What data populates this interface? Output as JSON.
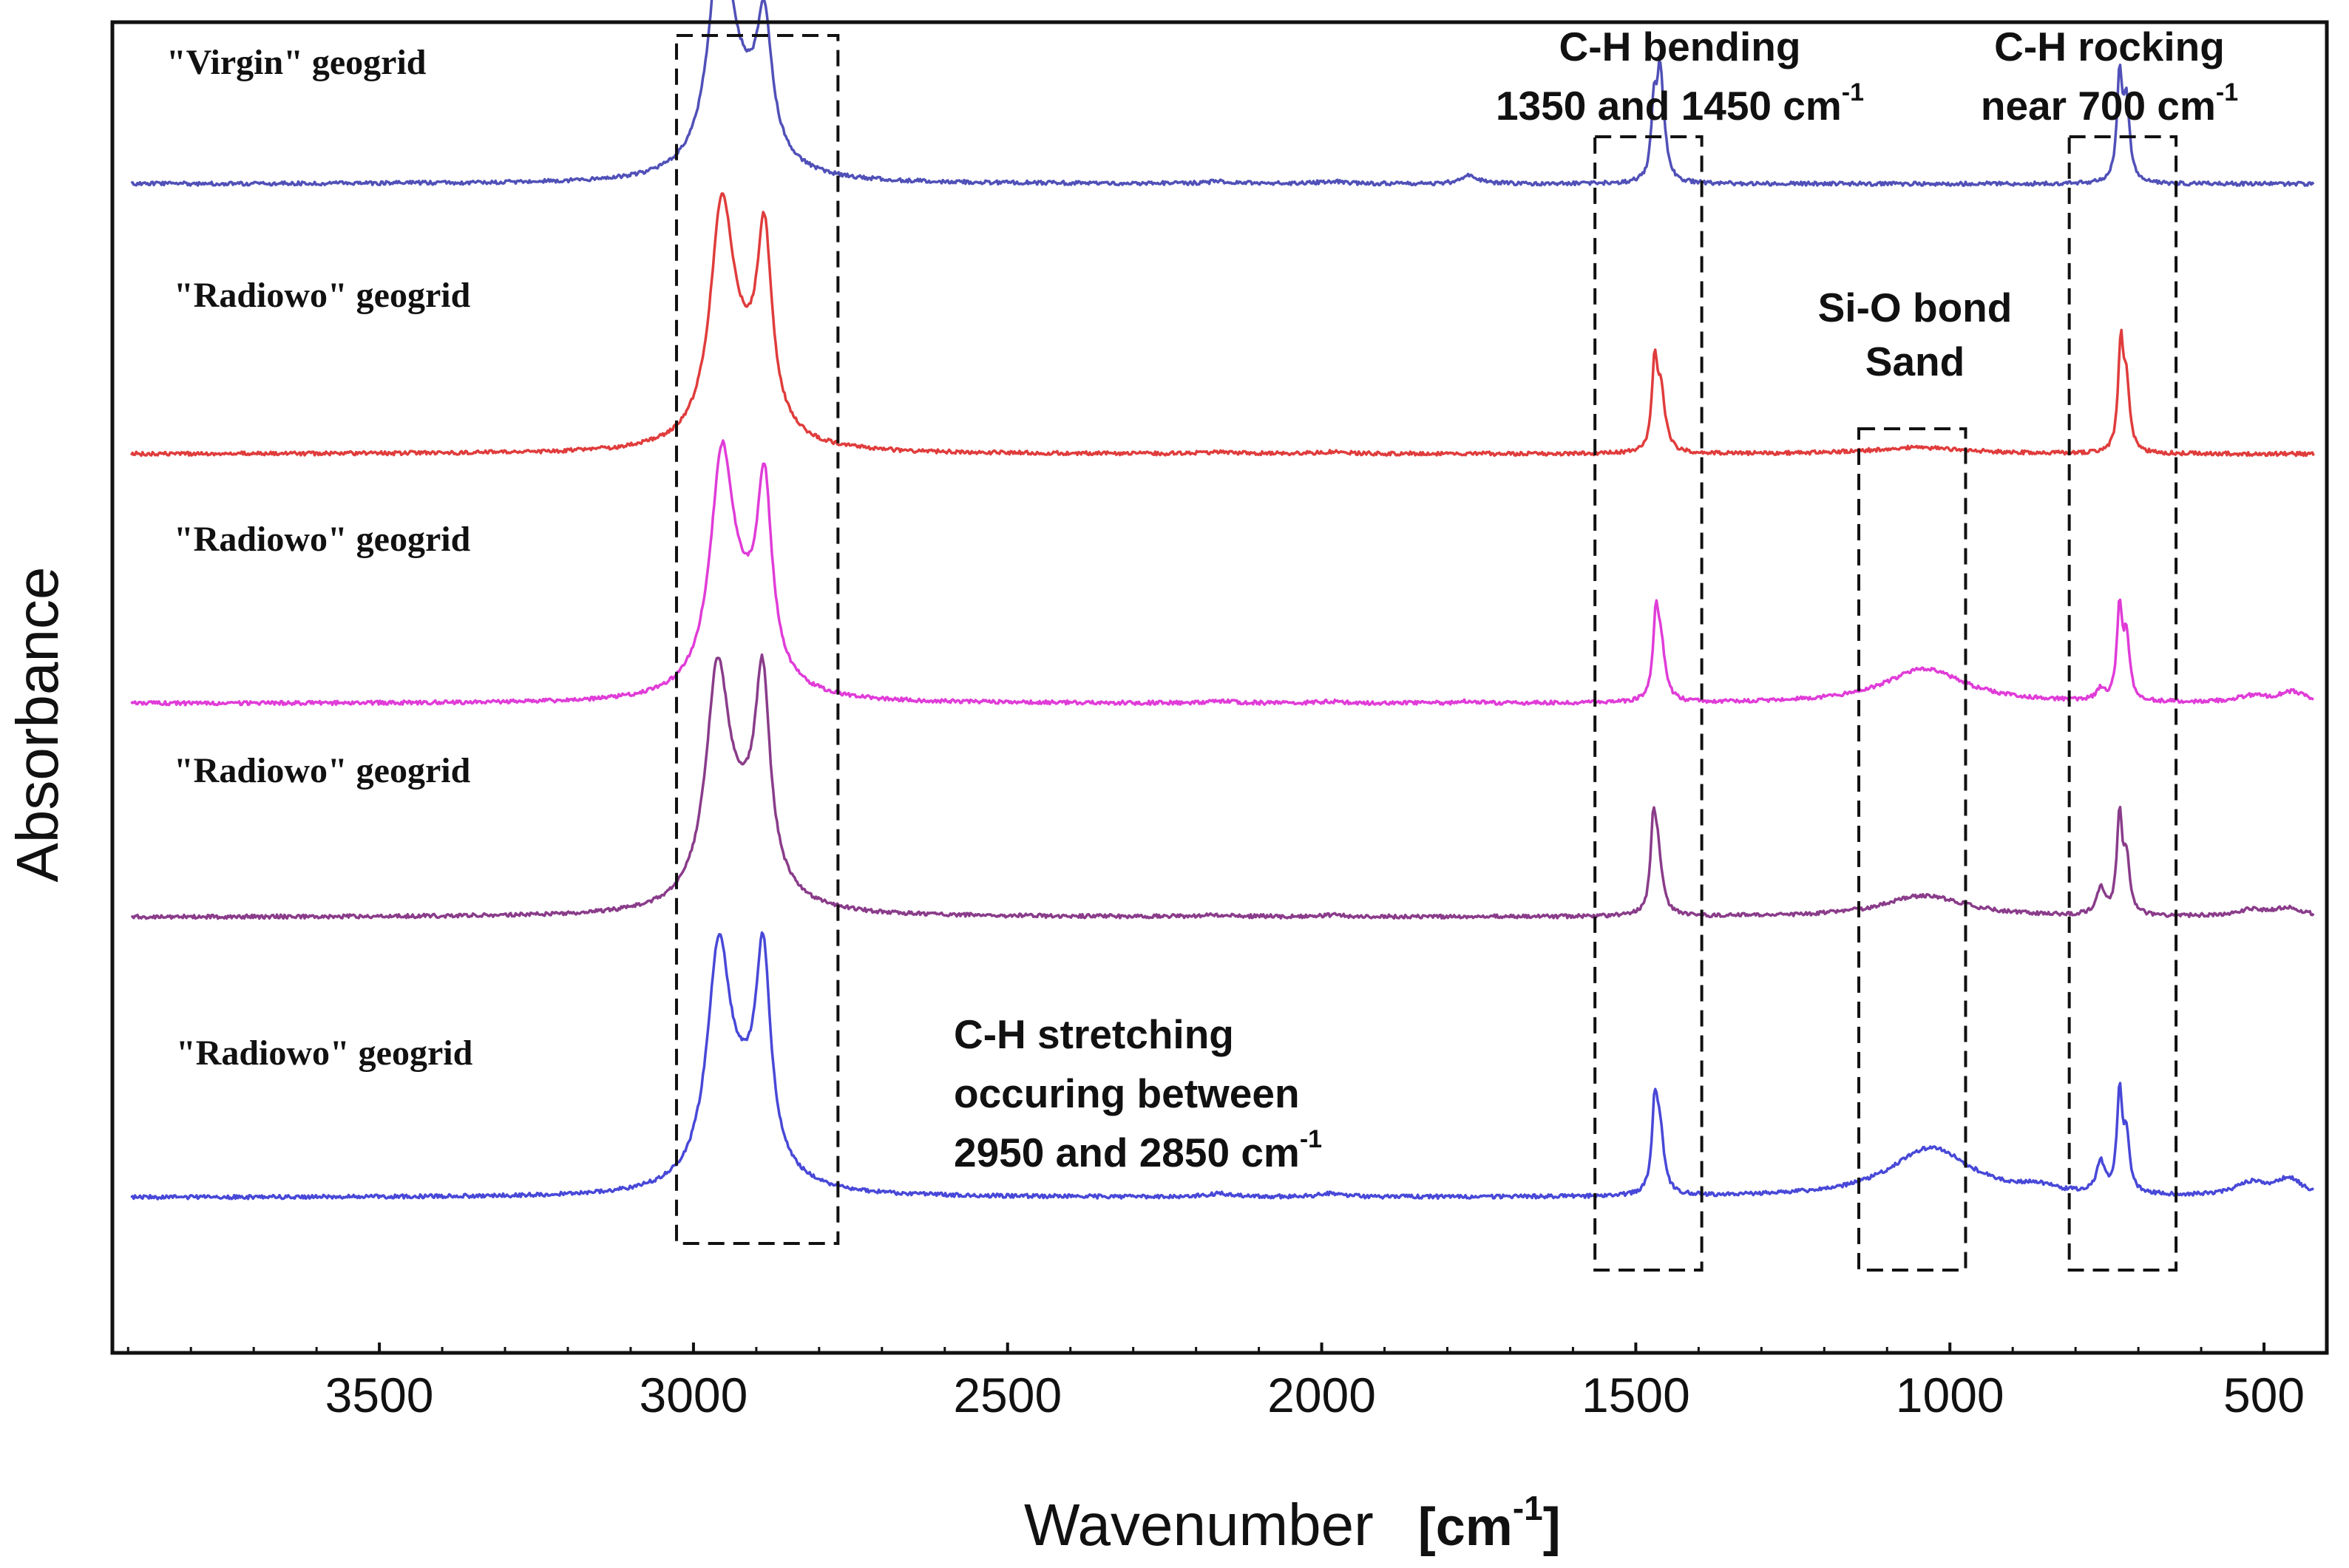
{
  "chart_data": {
    "type": "line",
    "title": "",
    "xlabel": "Wavenumber",
    "xunit_prefix": "[cm",
    "xunit_exp": "-1",
    "xunit_suffix": "]",
    "ylabel": "Absorbance",
    "xlim": [
      3925,
      400
    ],
    "x_reversed": true,
    "x_ticks": [
      3500,
      3000,
      2500,
      2000,
      1500,
      1000,
      500
    ],
    "x_tick_labels": [
      "3500",
      "3000",
      "2500",
      "2000",
      "1500",
      "1000",
      "500"
    ],
    "y_ticks": "none",
    "grid": false,
    "series": [
      {
        "name": "\"Virgin\" geogrid",
        "color": "#5050b8",
        "baseline": 0.88,
        "scale": 1.0,
        "peaks": [
          [
            2957,
            1.0,
            22
          ],
          [
            2919,
            0.3,
            45
          ],
          [
            2887,
            0.57,
            14
          ],
          [
            1765,
            0.04,
            15
          ],
          [
            1471,
            0.33,
            5
          ],
          [
            1462,
            0.33,
            5
          ],
          [
            1458,
            0.22,
            8
          ],
          [
            730,
            0.48,
            5
          ],
          [
            719,
            0.36,
            6
          ],
          [
            2160,
            0.01,
            25
          ],
          [
            1985,
            0.01,
            25
          ]
        ]
      },
      {
        "name": "\"Radiowo\" geogrid",
        "color": "#e03c3c",
        "baseline": 0.67,
        "scale": 1.0,
        "peaks": [
          [
            2955,
            1.0,
            22
          ],
          [
            2919,
            0.3,
            45
          ],
          [
            2887,
            0.83,
            14
          ],
          [
            1470,
            0.38,
            5
          ],
          [
            1460,
            0.28,
            8
          ],
          [
            728,
            0.48,
            5
          ],
          [
            719,
            0.3,
            6
          ],
          [
            1050,
            0.03,
            90
          ],
          [
            2160,
            0.008,
            25
          ],
          [
            1985,
            0.008,
            25
          ]
        ]
      },
      {
        "name": "\"Radiowo\" geogrid",
        "color": "#e03cd8",
        "baseline": 0.476,
        "scale": 1.0,
        "peaks": [
          [
            2955,
            1.0,
            22
          ],
          [
            2919,
            0.3,
            45
          ],
          [
            2887,
            0.83,
            14
          ],
          [
            1468,
            0.35,
            5
          ],
          [
            1460,
            0.25,
            8
          ],
          [
            730,
            0.42,
            5
          ],
          [
            760,
            0.05,
            8
          ],
          [
            719,
            0.28,
            6
          ],
          [
            1040,
            0.16,
            80
          ],
          [
            520,
            0.03,
            30
          ],
          [
            455,
            0.05,
            25
          ],
          [
            2160,
            0.008,
            25
          ],
          [
            1985,
            0.008,
            25
          ],
          [
            1765,
            0.01,
            15
          ]
        ]
      },
      {
        "name": "\"Radiowo\" geogrid",
        "color": "#8a3c8a",
        "baseline": 0.31,
        "scale": 1.0,
        "peaks": [
          [
            2962,
            1.0,
            22
          ],
          [
            2919,
            0.35,
            45
          ],
          [
            2890,
            0.88,
            14
          ],
          [
            1472,
            0.35,
            5
          ],
          [
            1465,
            0.28,
            8
          ],
          [
            730,
            0.45,
            5
          ],
          [
            760,
            0.12,
            8
          ],
          [
            719,
            0.25,
            6
          ],
          [
            1040,
            0.1,
            80
          ],
          [
            520,
            0.03,
            30
          ],
          [
            460,
            0.04,
            25
          ],
          [
            2160,
            0.008,
            25
          ],
          [
            1985,
            0.008,
            25
          ]
        ]
      },
      {
        "name": "\"Radiowo\" geogrid",
        "color": "#4848d8",
        "baseline": 0.092,
        "scale": 1.0,
        "peaks": [
          [
            2960,
            1.0,
            22
          ],
          [
            2919,
            0.35,
            45
          ],
          [
            2889,
            0.9,
            14
          ],
          [
            1470,
            0.35,
            5
          ],
          [
            1462,
            0.3,
            8
          ],
          [
            730,
            0.45,
            5
          ],
          [
            760,
            0.14,
            8
          ],
          [
            719,
            0.25,
            6
          ],
          [
            1030,
            0.23,
            80
          ],
          [
            860,
            0.03,
            30
          ],
          [
            520,
            0.06,
            30
          ],
          [
            460,
            0.08,
            25
          ],
          [
            2160,
            0.015,
            25
          ],
          [
            1985,
            0.015,
            25
          ]
        ]
      }
    ],
    "annotations": [
      {
        "id": "ch-stretching",
        "lines": [
          "C-H stretching",
          "occuring between",
          "2950 and 2850 cm"
        ],
        "superscript": "-1",
        "box_x": [
          3027,
          2770
        ]
      },
      {
        "id": "ch-bending",
        "lines": [
          "C-H bending",
          "1350 and 1450 cm"
        ],
        "superscript": "-1",
        "box_x": [
          1565,
          1395
        ]
      },
      {
        "id": "sio-bond",
        "lines": [
          "Si-O bond",
          "Sand"
        ],
        "superscript": "",
        "box_x": [
          1145,
          975
        ]
      },
      {
        "id": "ch-rocking",
        "lines": [
          "C-H rocking",
          "near 700 cm"
        ],
        "superscript": "-1",
        "box_x": [
          810,
          640
        ]
      }
    ]
  }
}
